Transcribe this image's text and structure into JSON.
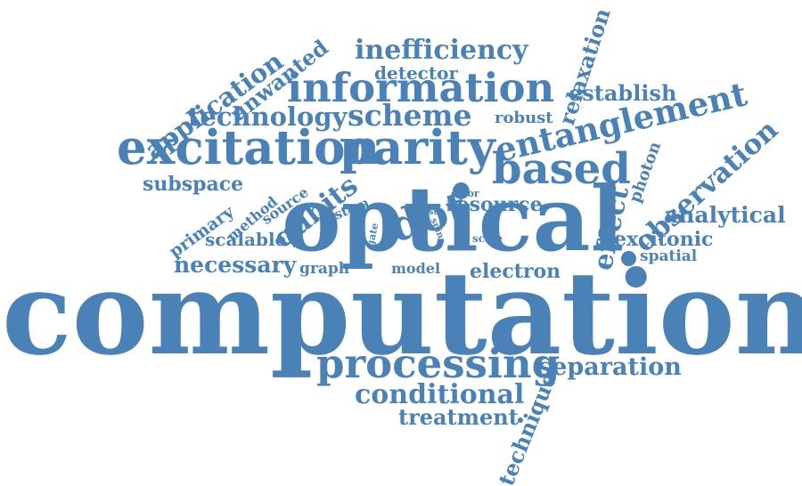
{
  "accent_color": "#4a81b6",
  "background_color": "#ffffff",
  "words": {
    "computation": "computation",
    "optical": "optical",
    "information": "information",
    "excitation": "excitation",
    "parity": "parity",
    "entanglement": "entanglement",
    "based": "based",
    "dot": "dot",
    "scheme": "scheme",
    "processing": "processing",
    "separation": "separation",
    "conditional": "conditional",
    "treatment": "treatment",
    "technique": "technique",
    "inefficiency": "inefficiency",
    "detector": "detector",
    "application": "application",
    "unwanted": "unwanted",
    "technology": "technology",
    "robust": "robust",
    "relaxation": "relaxation",
    "establish": "establish",
    "observation": "observation",
    "photon": "photon",
    "analytical": "analytical",
    "excitonic": "excitonic",
    "spatial": "spatial",
    "effect": "effect",
    "subspace": "subspace",
    "qubits": "qubits",
    "primary": "primary",
    "method": "method",
    "source": "source",
    "system": "system",
    "error": "error",
    "resource": "resource",
    "fast": "fast",
    "spin": "spin",
    "gate": "gate",
    "scale": "scale",
    "scalable": "scalable",
    "necessary": "necessary",
    "graph": "graph",
    "model": "model",
    "electron": "electron"
  }
}
